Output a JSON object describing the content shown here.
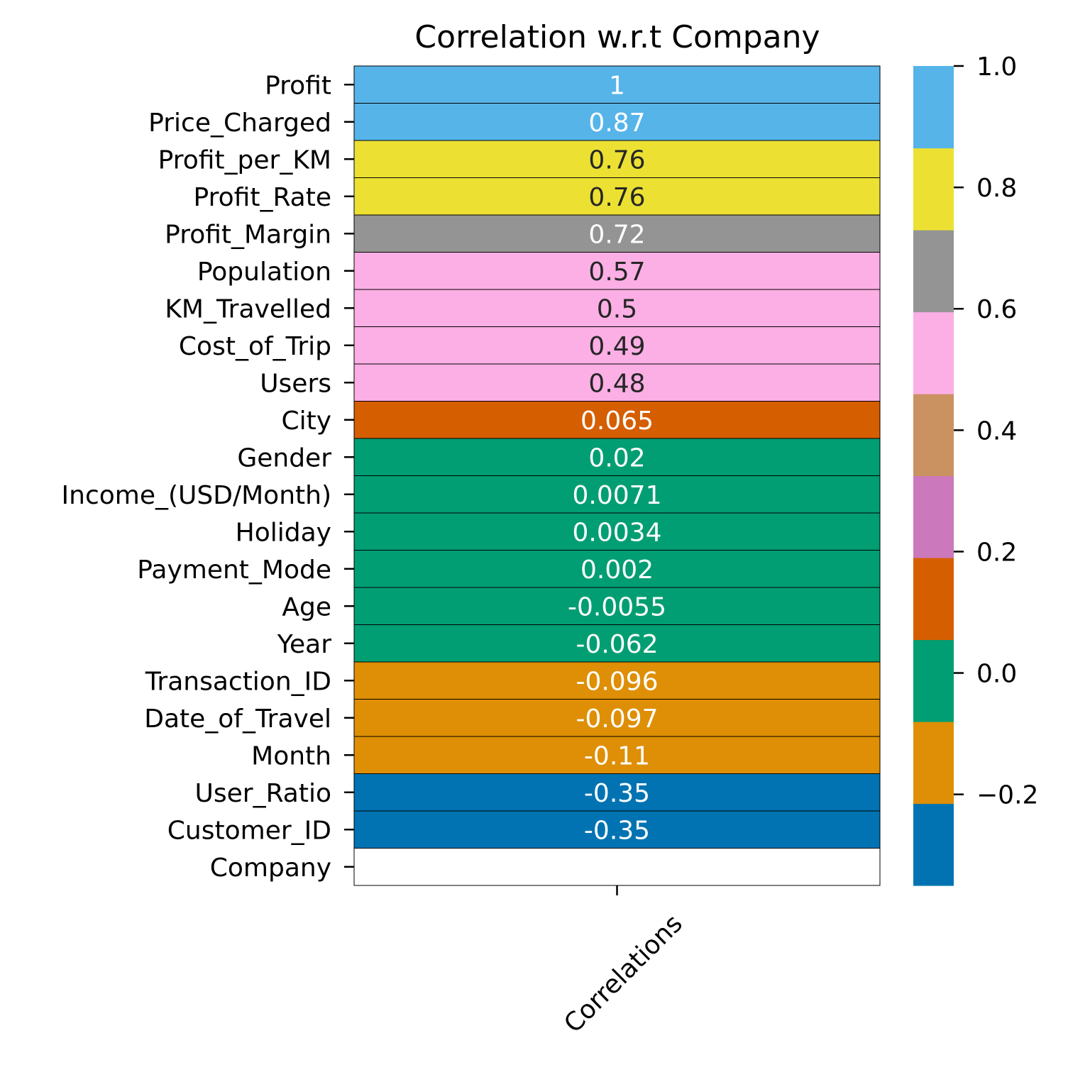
{
  "chart_data": {
    "type": "heatmap",
    "title": "Correlation w.r.t Company",
    "xlabel": "",
    "ylabel": "",
    "columns": [
      "Correlations"
    ],
    "rows": [
      {
        "label": "Profit",
        "value": 1,
        "annotation": "1"
      },
      {
        "label": "Price_Charged",
        "value": 0.87,
        "annotation": "0.87"
      },
      {
        "label": "Profit_per_KM",
        "value": 0.76,
        "annotation": "0.76"
      },
      {
        "label": "Profit_Rate",
        "value": 0.76,
        "annotation": "0.76"
      },
      {
        "label": "Profit_Margin",
        "value": 0.72,
        "annotation": "0.72"
      },
      {
        "label": "Population",
        "value": 0.57,
        "annotation": "0.57"
      },
      {
        "label": "KM_Travelled",
        "value": 0.5,
        "annotation": "0.5"
      },
      {
        "label": "Cost_of_Trip",
        "value": 0.49,
        "annotation": "0.49"
      },
      {
        "label": "Users",
        "value": 0.48,
        "annotation": "0.48"
      },
      {
        "label": "City",
        "value": 0.065,
        "annotation": "0.065"
      },
      {
        "label": "Gender",
        "value": 0.02,
        "annotation": "0.02"
      },
      {
        "label": "Income_(USD/Month)",
        "value": 0.0071,
        "annotation": "0.0071"
      },
      {
        "label": "Holiday",
        "value": 0.0034,
        "annotation": "0.0034"
      },
      {
        "label": "Payment_Mode",
        "value": 0.002,
        "annotation": "0.002"
      },
      {
        "label": "Age",
        "value": -0.0055,
        "annotation": "-0.0055"
      },
      {
        "label": "Year",
        "value": -0.062,
        "annotation": "-0.062"
      },
      {
        "label": "Transaction_ID",
        "value": -0.096,
        "annotation": "-0.096"
      },
      {
        "label": "Date_of_Travel",
        "value": -0.097,
        "annotation": "-0.097"
      },
      {
        "label": "Month",
        "value": -0.11,
        "annotation": "-0.11"
      },
      {
        "label": "User_Ratio",
        "value": -0.35,
        "annotation": "-0.35"
      },
      {
        "label": "Customer_ID",
        "value": -0.35,
        "annotation": "-0.35"
      },
      {
        "label": "Company",
        "value": null,
        "annotation": ""
      }
    ],
    "colorbar": {
      "vmin": -0.35,
      "vmax": 1.0,
      "ticks": [
        -0.2,
        0.0,
        0.2,
        0.4,
        0.6,
        0.8,
        1.0
      ],
      "tick_labels": [
        "−0.2",
        "0.0",
        "0.2",
        "0.4",
        "0.6",
        "0.8",
        "1.0"
      ],
      "palette": [
        "#0173b2",
        "#de8f05",
        "#029e73",
        "#d55e00",
        "#cc78bc",
        "#ca9161",
        "#fbafe4",
        "#949494",
        "#ece133",
        "#56b4e9"
      ],
      "position": "right"
    },
    "cell_border_color": "#000000",
    "annotation_dark_color": "#262626",
    "annotation_light_color": "#ffffff"
  }
}
